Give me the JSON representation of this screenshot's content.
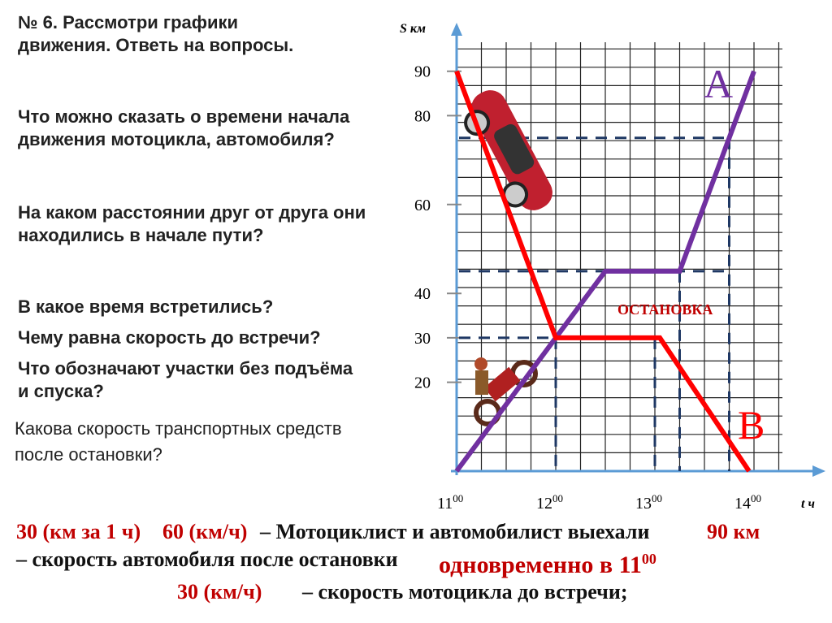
{
  "questions": [
    "№ 6. Рассмотри графики движения. Ответь на вопросы.",
    "Что можно сказать о времени начала движения мотоцикла, автомобиля?",
    "На каком расстоянии друг от друга они находились в начале пути?",
    "В какое время встретились?",
    "Чему равна скорость до встречи?",
    "Что обозначают участки без подъёма и спуска?"
  ],
  "question_last": "Какова скорость транспортных средств после остановки?",
  "answers": {
    "line1_red_a": "30 (км за 1 ч)",
    "line1_red_b": "60 (км/ч)",
    "line1_black_a": "– Мотоциклист и автомобилист выехали",
    "line1_black_b": "– скорость автомобиля после остановки",
    "distance": "90 км",
    "simultaneous": "одновременно в 11",
    "simultaneous_sup": "00",
    "line2_red": "30 (км/ч)",
    "line2_black": "– скорость мотоцикла до встречи;"
  },
  "chart_data": {
    "type": "line",
    "ylabel": "S км",
    "xlabel": "t ч",
    "yticks": [
      20,
      30,
      40,
      60,
      80,
      90
    ],
    "xticks": [
      {
        "v": 11,
        "l": "11",
        "s": "00"
      },
      {
        "v": 12,
        "l": "12",
        "s": "00"
      },
      {
        "v": 13,
        "l": "13",
        "s": "00"
      },
      {
        "v": 14,
        "l": "14",
        "s": "00"
      }
    ],
    "xlim": [
      11,
      14.3
    ],
    "ylim": [
      0,
      97
    ],
    "grid": true,
    "series": [
      {
        "name": "A",
        "color": "#7030a0",
        "points": [
          [
            11,
            0
          ],
          [
            12.5,
            45
          ],
          [
            13.25,
            45
          ],
          [
            14,
            90
          ]
        ]
      },
      {
        "name": "B",
        "color": "#ff0000",
        "points": [
          [
            11,
            90
          ],
          [
            12,
            30
          ],
          [
            13.05,
            30
          ],
          [
            13.95,
            0
          ]
        ]
      }
    ],
    "dashed_h": [
      [
        75,
        13.75
      ],
      [
        45,
        13.75
      ],
      [
        30,
        12
      ]
    ],
    "dashed_v": [
      [
        12,
        30
      ],
      [
        13,
        30
      ],
      [
        13.25,
        45
      ],
      [
        13.75,
        75
      ]
    ],
    "annotation": "ОСТАНОВКА",
    "colors": {
      "axis": "#5b9bd5",
      "dash": "#1f3864",
      "annotation": "#c00000"
    }
  }
}
